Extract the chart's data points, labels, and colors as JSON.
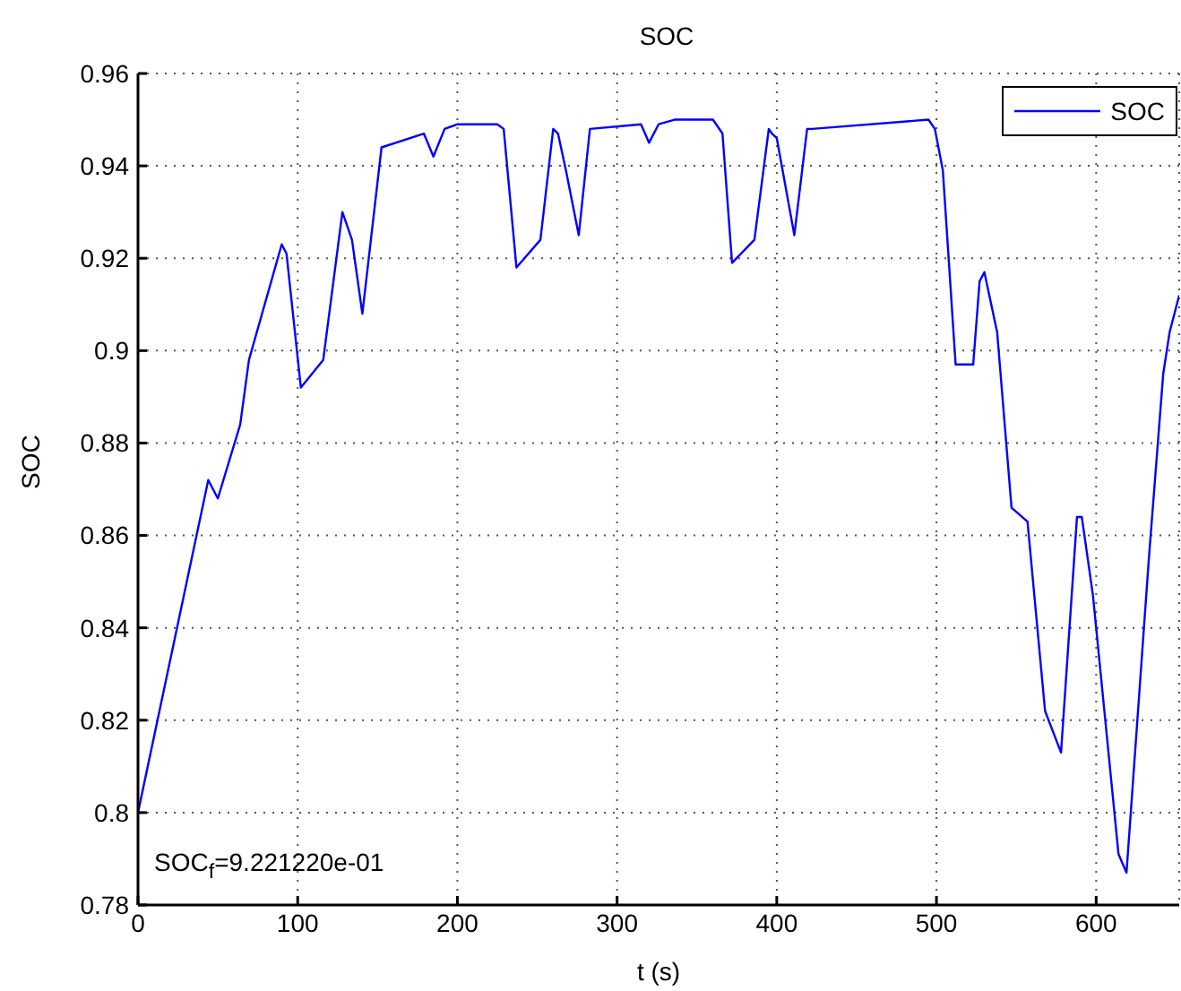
{
  "chart_data": {
    "type": "line",
    "title": "SOC",
    "xlabel": "t (s)",
    "ylabel": "SOC",
    "x": [
      0,
      44,
      50,
      64,
      69.5,
      90,
      93,
      102,
      116,
      128,
      134,
      140.5,
      152.5,
      179,
      185,
      192,
      200,
      225,
      229,
      237,
      252,
      260,
      263,
      268,
      276,
      283,
      315,
      320,
      326,
      336,
      360,
      366,
      372,
      386,
      395,
      397,
      400,
      411,
      419,
      422,
      495,
      499,
      504,
      512,
      523,
      527,
      530,
      538,
      547,
      557,
      568,
      578,
      588,
      591,
      598,
      614,
      619,
      633,
      642,
      646,
      652
    ],
    "series": [
      {
        "name": "SOC",
        "color": "#0000ff",
        "values": [
          0.8,
          0.872,
          0.868,
          0.884,
          0.898,
          0.923,
          0.921,
          0.892,
          0.898,
          0.93,
          0.924,
          0.908,
          0.944,
          0.947,
          0.942,
          0.948,
          0.949,
          0.949,
          0.948,
          0.918,
          0.924,
          0.948,
          0.947,
          0.939,
          0.925,
          0.948,
          0.949,
          0.945,
          0.949,
          0.95,
          0.95,
          0.947,
          0.919,
          0.924,
          0.948,
          0.947,
          0.946,
          0.925,
          0.948,
          0.948,
          0.95,
          0.948,
          0.939,
          0.897,
          0.897,
          0.915,
          0.917,
          0.904,
          0.866,
          0.863,
          0.822,
          0.813,
          0.864,
          0.864,
          0.847,
          0.791,
          0.787,
          0.855,
          0.895,
          0.904,
          0.912
        ]
      }
    ],
    "xlim": [
      0,
      652
    ],
    "xticks": [
      0,
      100,
      200,
      300,
      400,
      500,
      600
    ],
    "ylim": [
      0.78,
      0.96
    ],
    "yticks": [
      0.78,
      0.8,
      0.82,
      0.84,
      0.86,
      0.88,
      0.9,
      0.92,
      0.94,
      0.96
    ],
    "grid": true,
    "legend": "top right",
    "line_style": "solid",
    "marker": "none",
    "annotations": [
      "SOC$_{f}$=9.221220e-01"
    ]
  }
}
